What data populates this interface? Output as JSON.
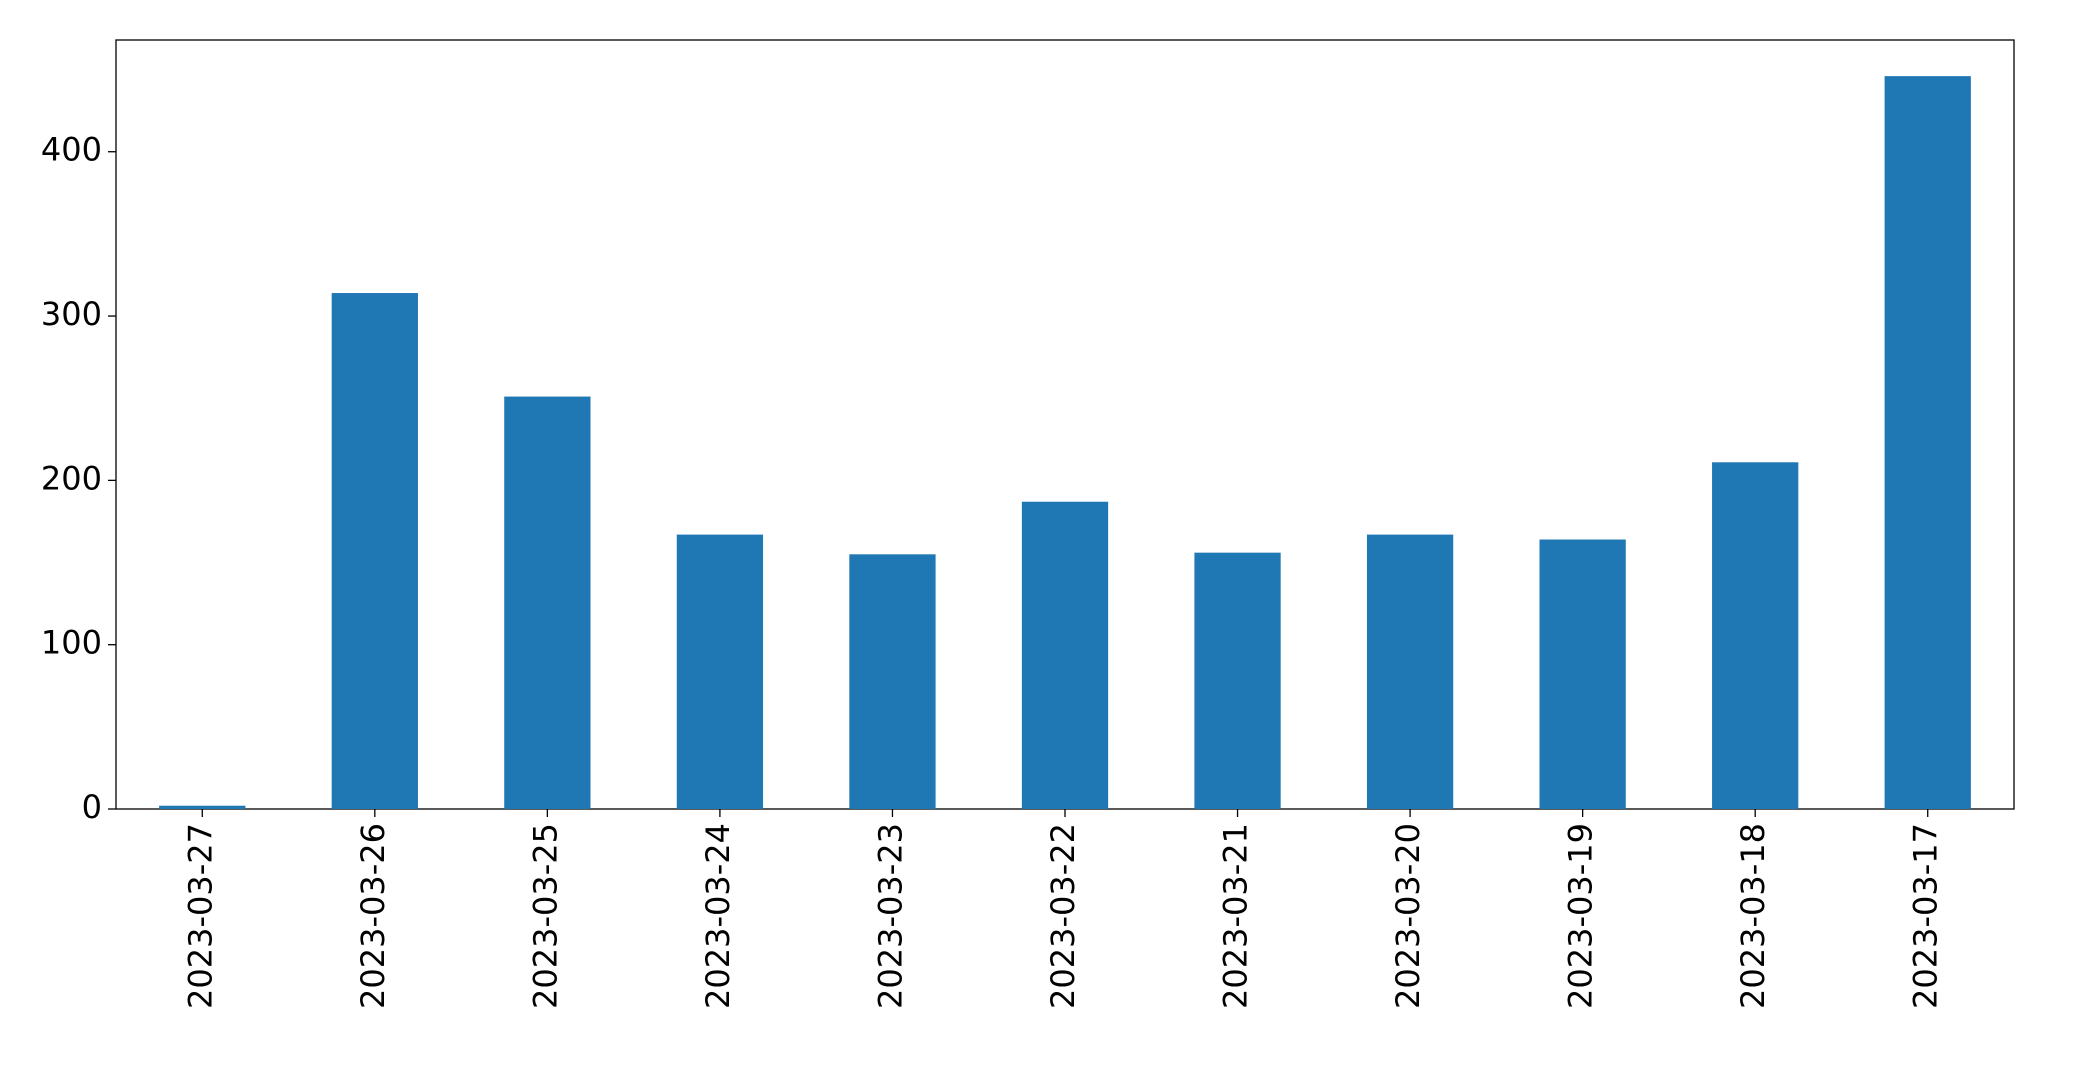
{
  "chart_data": {
    "type": "bar",
    "categories": [
      "2023-03-27",
      "2023-03-26",
      "2023-03-25",
      "2023-03-24",
      "2023-03-23",
      "2023-03-22",
      "2023-03-21",
      "2023-03-20",
      "2023-03-19",
      "2023-03-18",
      "2023-03-17"
    ],
    "values": [
      2,
      314,
      251,
      167,
      155,
      187,
      156,
      167,
      164,
      211,
      446
    ],
    "color": "#1f77b4",
    "ylim": [
      0,
      468
    ],
    "yticks": [
      0,
      100,
      200,
      300,
      400
    ],
    "grid": false
  }
}
